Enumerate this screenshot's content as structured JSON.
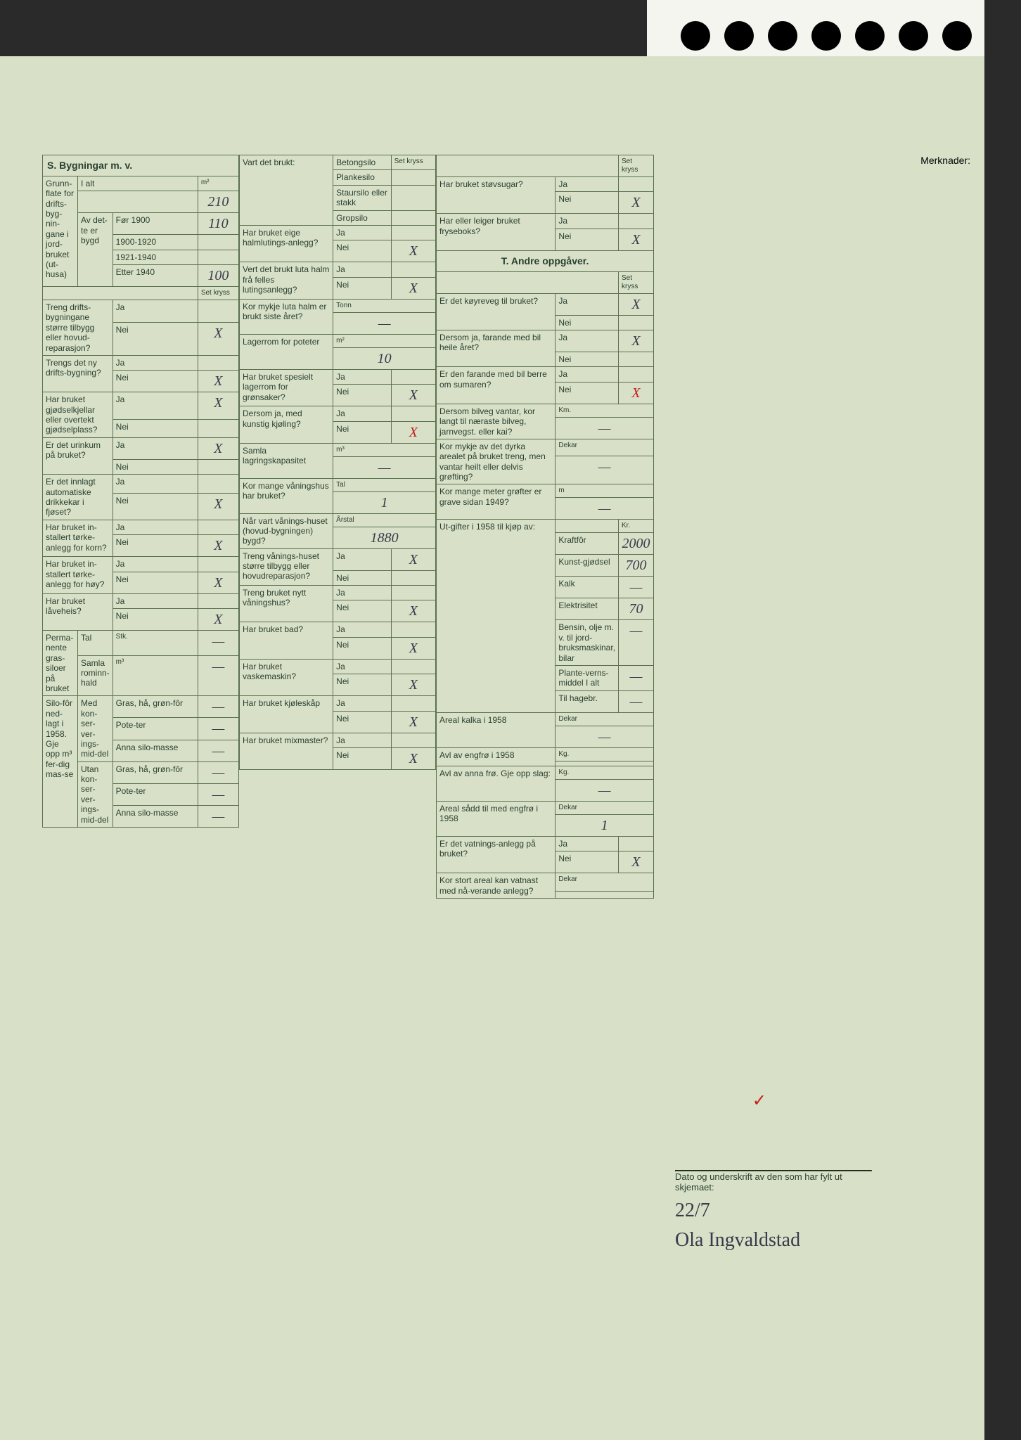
{
  "tab_holes": 7,
  "section_s_title": "S. Bygningar m. v.",
  "merknader_label": "Merknader:",
  "grunnflate": {
    "label": "Grunn-flate for drifts-byg-nin-gane i jord-bruket (ut-husa)",
    "unit": "m²",
    "ialt_label": "I alt",
    "ialt_value": "210",
    "av_dette_label": "Av det-te er bygd",
    "periods": [
      {
        "label": "Før 1900",
        "value": "110"
      },
      {
        "label": "1900-1920",
        "value": ""
      },
      {
        "label": "1921-1940",
        "value": ""
      },
      {
        "label": "Etter 1940",
        "value": "100"
      }
    ]
  },
  "set_kryss_label": "Set kryss",
  "ja_nei_questions_col1": [
    {
      "q": "Treng drifts-bygningane større tilbygg eller hovud-reparasjon?",
      "ja": "",
      "nei": "X"
    },
    {
      "q": "Trengs det ny drifts-bygning?",
      "ja": "",
      "nei": "X"
    },
    {
      "q": "Har bruket gjødselkjellar eller overtekt gjødselplass?",
      "ja": "X",
      "nei": ""
    },
    {
      "q": "Er det urinkum på bruket?",
      "ja": "X",
      "nei": ""
    },
    {
      "q": "Er det innlagt automatiske drikkekar i fjøset?",
      "ja": "",
      "nei": "X"
    },
    {
      "q": "Har bruket in-stallert tørke-anlegg for korn?",
      "ja": "",
      "nei": "X"
    },
    {
      "q": "Har bruket in-stallert tørke-anlegg for høy?",
      "ja": "",
      "nei": "X"
    },
    {
      "q": "Har bruket låveheis?",
      "ja": "",
      "nei": "X"
    }
  ],
  "permanente_grassiloer": {
    "label": "Perma-nente gras-siloer på bruket",
    "tal_label": "Tal",
    "tal_unit": "Stk.",
    "tal_value": "—",
    "rom_label": "Samla rominn-hald",
    "rom_unit": "m³",
    "rom_value": "—"
  },
  "silofor": {
    "label": "Silo-fôr ned-lagt i 1958. Gje opp m³ fer-dig mas-se",
    "med_label": "Med kon-ser-ver-ings-mid-del",
    "utan_label": "Utan kon-ser-ver-ings-mid-del",
    "rows": [
      {
        "label": "Gras, hå, grøn-fôr",
        "unit": "m³",
        "med": "—",
        "utan": "—"
      },
      {
        "label": "Pote-ter",
        "med": "—",
        "utan": "—"
      },
      {
        "label": "Anna silo-masse",
        "med": "—",
        "utan": "—"
      }
    ]
  },
  "vart_det_brukt": {
    "label": "Vart det brukt:",
    "options": [
      "Betongsilo",
      "Plankesilo",
      "Staursilo eller stakk",
      "Gropsilo"
    ]
  },
  "col2_questions": [
    {
      "q": "Har bruket eige halmlutings-anlegg?",
      "ja": "",
      "nei": "X"
    },
    {
      "q": "Vert det brukt luta halm frå felles lutingsanlegg?",
      "ja": "",
      "nei": "X"
    },
    {
      "q": "Kor mykje luta halm er brukt siste året?",
      "unit": "Tonn",
      "value": "—"
    },
    {
      "q": "Lagerrom for poteter",
      "unit": "m²",
      "value": "10"
    },
    {
      "q": "Har bruket spesielt lagerrom for grønsaker?",
      "ja": "",
      "nei": "X"
    },
    {
      "q": "Dersom ja, med kunstig kjøling?",
      "ja": "",
      "nei": "X",
      "nei_red": true
    },
    {
      "q": "Samla lagringskapasitet",
      "unit": "m³",
      "value": "—"
    },
    {
      "q": "Kor mange våningshus har bruket?",
      "unit": "Tal",
      "value": "1"
    },
    {
      "q": "Når vart vånings-huset (hovud-bygningen) bygd?",
      "unit": "Årstal",
      "value": "1880"
    },
    {
      "q": "Treng vånings-huset større tilbygg eller hovudreparasjon?",
      "ja": "X",
      "nei": ""
    },
    {
      "q": "Treng bruket nytt våningshus?",
      "ja": "",
      "nei": "X"
    },
    {
      "q": "Har bruket bad?",
      "ja": "",
      "nei": "X"
    },
    {
      "q": "Har bruket vaskemaskin?",
      "ja": "",
      "nei": "X"
    },
    {
      "q": "Har bruket kjøleskåp",
      "ja": "",
      "nei": "X"
    },
    {
      "q": "Har bruket mixmaster?",
      "ja": "",
      "nei": "X"
    }
  ],
  "col3_questions": [
    {
      "q": "Har bruket støvsugar?",
      "ja": "",
      "nei": "X"
    },
    {
      "q": "Har eller leiger bruket fryseboks?",
      "ja": "",
      "nei": "X"
    }
  ],
  "section_t_title": "T. Andre oppgåver.",
  "col3_t_questions": [
    {
      "q": "Er det køyreveg til bruket?",
      "ja": "X",
      "nei": ""
    },
    {
      "q": "Dersom ja, farande med bil heile året?",
      "ja": "X",
      "nei": ""
    },
    {
      "q": "Er den farande med bil berre om sumaren?",
      "ja": "",
      "nei": "X",
      "nei_strikered": true
    },
    {
      "q": "Dersom bilveg vantar, kor langt til næraste bilveg, jarnvegst. eller kai?",
      "unit": "Km.",
      "value": "—"
    },
    {
      "q": "Kor mykje av det dyrka arealet på bruket treng, men vantar heilt eller delvis grøfting?",
      "unit": "Dekar",
      "value": "—"
    },
    {
      "q": "Kor mange meter grøfter er grave sidan 1949?",
      "unit": "m",
      "value": "—"
    }
  ],
  "utgifter": {
    "label": "Ut-gifter i 1958 til kjøp av:",
    "unit": "Kr.",
    "items": [
      {
        "label": "Kraftfôr",
        "value": "2000"
      },
      {
        "label": "Kunst-gjødsel",
        "value": "700"
      },
      {
        "label": "Kalk",
        "value": "—"
      },
      {
        "label": "Elektrisitet",
        "value": "70"
      },
      {
        "label": "Bensin, olje m. v. til jord-bruksmaskinar, bilar",
        "value": "—"
      }
    ],
    "plantevernmiddel_label": "Plante-verns-middel",
    "plantevernmiddel": [
      {
        "label": "I alt",
        "value": "—"
      },
      {
        "label": "Til hagebr.",
        "value": "—"
      }
    ]
  },
  "bottom_questions": [
    {
      "q": "Areal kalka i 1958",
      "unit": "Dekar",
      "value": "—"
    },
    {
      "q": "Avl av engfrø i 1958",
      "unit": "Kg.",
      "value": ""
    },
    {
      "q": "Avl av anna frø. Gje opp slag:",
      "unit": "Kg.",
      "value": "—"
    },
    {
      "q": "Areal sådd til med engfrø i 1958",
      "unit": "Dekar",
      "value": "1"
    },
    {
      "q": "Er det vatnings-anlegg på bruket?",
      "ja": "",
      "nei": "X"
    },
    {
      "q": "Kor stort areal kan vatnast med nå-verande anlegg?",
      "unit": "Dekar",
      "value": ""
    }
  ],
  "signature": {
    "label": "Dato og underskrift av den som har fylt ut skjemaet:",
    "date": "22/7",
    "name": "Ola Ingvaldstad"
  },
  "ja_label": "Ja",
  "nei_label": "Nei"
}
